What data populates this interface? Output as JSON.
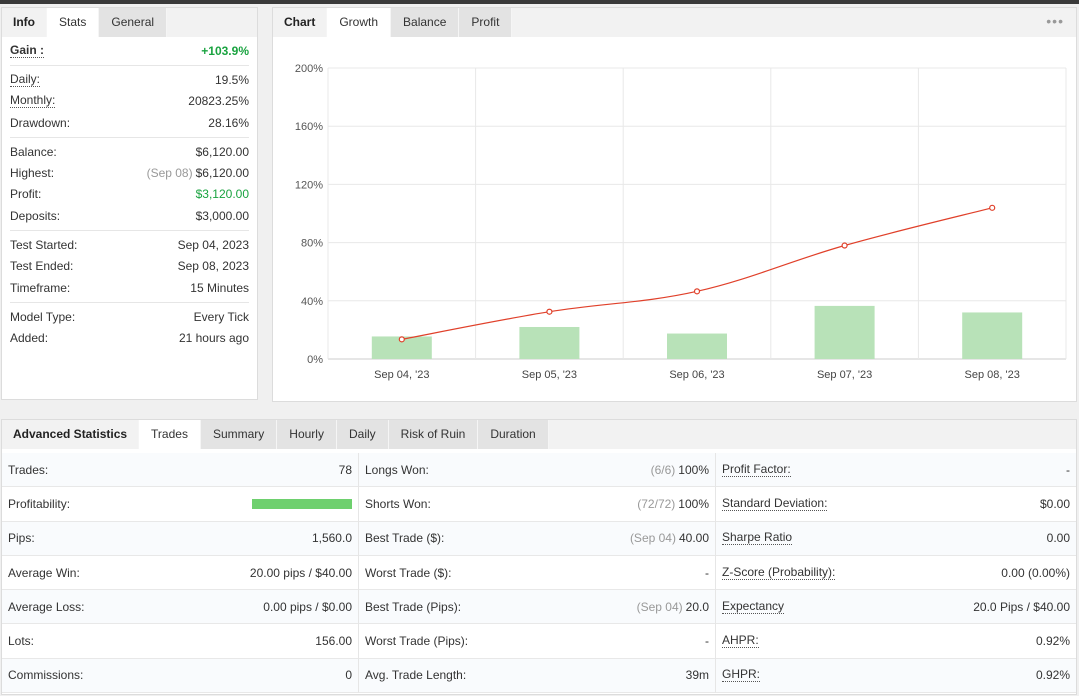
{
  "info_tabs": [
    "Info",
    "Stats",
    "General"
  ],
  "info": {
    "gain": {
      "label": "Gain :",
      "value": "+103.9%"
    },
    "daily": {
      "label": "Daily:",
      "value": "19.5%"
    },
    "monthly": {
      "label": "Monthly:",
      "value": "20823.25%"
    },
    "drawdown": {
      "label": "Drawdown:",
      "value": "28.16%"
    },
    "balance": {
      "label": "Balance:",
      "value": "$6,120.00"
    },
    "highest": {
      "label": "Highest:",
      "date": "(Sep 08)",
      "value": "$6,120.00"
    },
    "profit": {
      "label": "Profit:",
      "value": "$3,120.00"
    },
    "deposits": {
      "label": "Deposits:",
      "value": "$3,000.00"
    },
    "test_started": {
      "label": "Test Started:",
      "value": "Sep 04, 2023"
    },
    "test_ended": {
      "label": "Test Ended:",
      "value": "Sep 08, 2023"
    },
    "timeframe": {
      "label": "Timeframe:",
      "value": "15 Minutes"
    },
    "model_type": {
      "label": "Model Type:",
      "value": "Every Tick"
    },
    "added": {
      "label": "Added:",
      "value": "21 hours ago"
    }
  },
  "chart_tabs": [
    "Chart",
    "Growth",
    "Balance",
    "Profit"
  ],
  "chart_menu": "•••",
  "colors": {
    "line": "#e0402a",
    "bar": "#b8e2b8",
    "profit_bar": "#6ed06e",
    "positive": "#1aa340"
  },
  "chart_data": {
    "type": "bar",
    "categories": [
      "Sep 04, '23",
      "Sep 05, '23",
      "Sep 06, '23",
      "Sep 07, '23",
      "Sep 08, '23"
    ],
    "series": [
      {
        "type": "bar",
        "values": [
          15.5,
          22,
          17.5,
          36.5,
          32
        ]
      },
      {
        "type": "line",
        "values": [
          13.5,
          32.5,
          46.5,
          78,
          103.9
        ]
      }
    ],
    "ylim": [
      0,
      200
    ],
    "yticks": [
      "200%",
      "160%",
      "120%",
      "80%",
      "40%",
      "0%"
    ],
    "grid": true
  },
  "stats_tabs": [
    "Advanced Statistics",
    "Trades",
    "Summary",
    "Hourly",
    "Daily",
    "Risk of Ruin",
    "Duration"
  ],
  "stats": {
    "col1": [
      {
        "label": "Trades:",
        "value": "78"
      },
      {
        "label": "Profitability:",
        "value": "",
        "bar": 1.0
      },
      {
        "label": "Pips:",
        "value": "1,560.0"
      },
      {
        "label": "Average Win:",
        "value": "20.00 pips / $40.00"
      },
      {
        "label": "Average Loss:",
        "value": "0.00 pips / $0.00"
      },
      {
        "label": "Lots:",
        "value": "156.00"
      },
      {
        "label": "Commissions:",
        "value": "0"
      }
    ],
    "col2": [
      {
        "label": "Longs Won:",
        "muted": "(6/6)",
        "value": "100%"
      },
      {
        "label": "Shorts Won:",
        "muted": "(72/72)",
        "value": "100%"
      },
      {
        "label": "Best Trade ($):",
        "muted": "(Sep 04)",
        "value": "40.00"
      },
      {
        "label": "Worst Trade ($):",
        "muted": "",
        "value": "-"
      },
      {
        "label": "Best Trade (Pips):",
        "muted": "(Sep 04)",
        "value": "20.0"
      },
      {
        "label": "Worst Trade (Pips):",
        "muted": "",
        "value": "-"
      },
      {
        "label": "Avg. Trade Length:",
        "muted": "",
        "value": "39m"
      }
    ],
    "col3": [
      {
        "label": "Profit Factor:",
        "value": "-"
      },
      {
        "label": "Standard Deviation:",
        "value": "$0.00"
      },
      {
        "label": "Sharpe Ratio",
        "value": "0.00"
      },
      {
        "label": "Z-Score (Probability):",
        "value": "0.00 (0.00%)"
      },
      {
        "label": "Expectancy",
        "value": "20.0 Pips / $40.00"
      },
      {
        "label": "AHPR:",
        "value": "0.92%"
      },
      {
        "label": "GHPR:",
        "value": "0.92%"
      }
    ]
  }
}
